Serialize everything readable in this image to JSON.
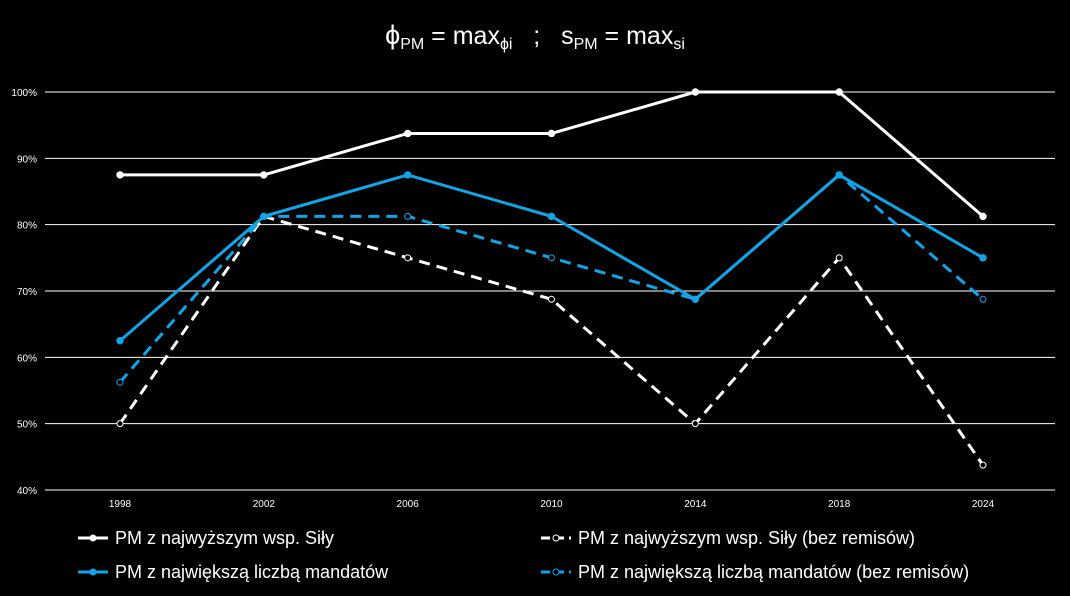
{
  "chart_data": {
    "type": "line",
    "title": {
      "phi_symbol": "ϕ",
      "phi_sub": "PM",
      "eq1": " = max",
      "eq1_sub": "ϕi",
      "separator": "   ;   ",
      "s_symbol": "s",
      "s_sub": "PM",
      "eq2": " = max",
      "eq2_sub": "si"
    },
    "xlabel": "",
    "ylabel": "",
    "ylim": [
      40,
      100
    ],
    "ytick_values": [
      40,
      50,
      60,
      70,
      80,
      90,
      100
    ],
    "ytick_labels": [
      "40%",
      "50%",
      "60%",
      "70%",
      "80%",
      "90%",
      "100%"
    ],
    "grid": true,
    "legend_position": "bottom",
    "categories": [
      "1998",
      "2002",
      "2006",
      "2010",
      "2014",
      "2018",
      "2024"
    ],
    "series": [
      {
        "name": "PM z najwyższym wsp. Siły",
        "values": [
          87.5,
          87.5,
          93.75,
          93.75,
          100,
          100,
          81.25
        ],
        "color": "#ffffff",
        "dashed": false,
        "marker": "filled"
      },
      {
        "name": "PM z najwyższym wsp. Siły (bez remisów)",
        "values": [
          50,
          81.25,
          75,
          68.75,
          50,
          75,
          43.75
        ],
        "color": "#ffffff",
        "dashed": true,
        "marker": "hollow"
      },
      {
        "name": "PM z największą liczbą mandatów",
        "values": [
          62.5,
          81.25,
          87.5,
          81.25,
          68.75,
          87.5,
          75
        ],
        "color": "#12a5e6",
        "dashed": false,
        "marker": "filled"
      },
      {
        "name": "PM z największą liczbą mandatów (bez remisów)",
        "values": [
          56.25,
          81.25,
          81.25,
          75,
          68.75,
          87.5,
          68.75
        ],
        "color": "#12a5e6",
        "dashed": true,
        "marker": "hollow"
      }
    ]
  },
  "colors": {
    "background": "#000000",
    "grid": "#ffffff",
    "text": "#ffffff"
  }
}
